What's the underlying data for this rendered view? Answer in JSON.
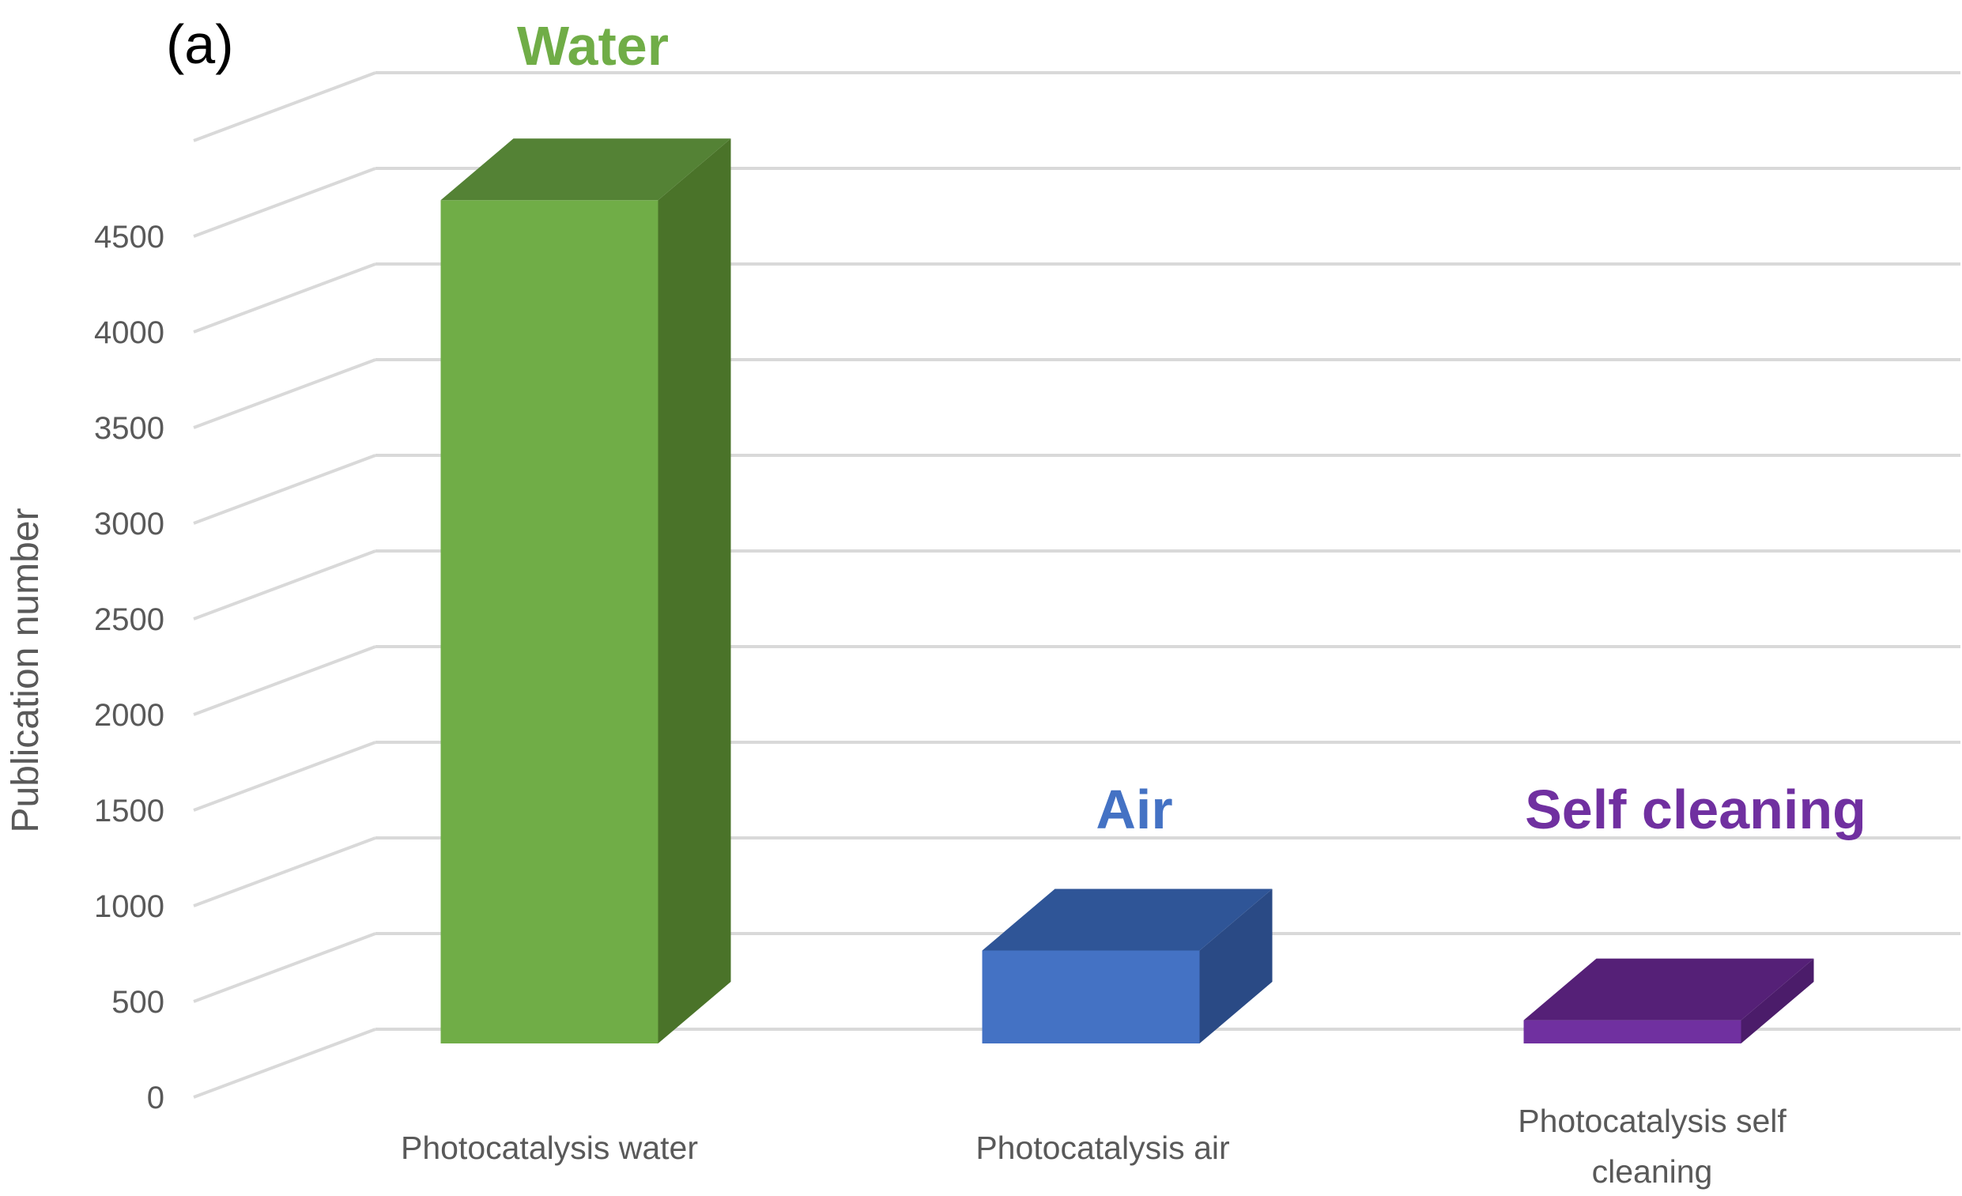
{
  "panel_label": "(a)",
  "chart_data": {
    "type": "bar",
    "title": "",
    "xlabel": "",
    "ylabel": "Publication number",
    "ylim": [
      0,
      5000
    ],
    "yticks": [
      0,
      500,
      1000,
      1500,
      2000,
      2500,
      3000,
      3500,
      4000,
      4500
    ],
    "grid": true,
    "style": "3d-column",
    "categories": [
      "Photocatalysis water",
      "Photocatalysis air",
      "Photocatalysis self cleaning"
    ],
    "category_lines": [
      [
        "Photocatalysis water"
      ],
      [
        "Photocatalysis air"
      ],
      [
        "Photocatalysis self",
        "cleaning"
      ]
    ],
    "values": [
      4720,
      520,
      130
    ],
    "annotations": [
      "Water",
      "Air",
      "Self cleaning"
    ],
    "colors": {
      "front": [
        "#70ad47",
        "#4472c4",
        "#7030a0"
      ],
      "top": [
        "#548235",
        "#2f5597",
        "#552077"
      ],
      "side": [
        "#4a7329",
        "#2a4a85",
        "#4b1c6a"
      ],
      "annotation": [
        "#70ad47",
        "#4472c4",
        "#7030a0"
      ],
      "grid": "#d9d9d9",
      "text": "#595959"
    }
  }
}
